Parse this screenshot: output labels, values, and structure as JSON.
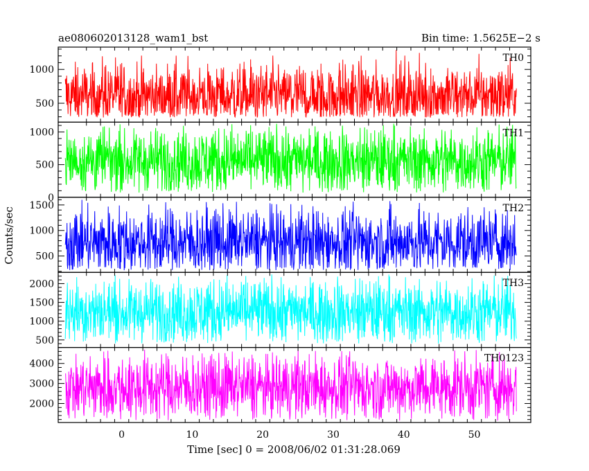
{
  "header": {
    "title": "ae080602013128_wam1_bst",
    "bin_time": "Bin time: 1.5625E−2 s"
  },
  "axes": {
    "xlabel": "Time [sec] 0 = 2008/06/02 01:31:28.069",
    "ylabel": "Counts/sec"
  },
  "chart_data": {
    "type": "line",
    "title": "ae080602013128_wam1_bst",
    "xlabel": "Time [sec] 0 = 2008/06/02 01:31:28.069",
    "ylabel": "Counts/sec",
    "xlim": [
      -9,
      58
    ],
    "x_range_data": [
      -8,
      56
    ],
    "x_ticks": [
      0,
      10,
      20,
      30,
      40,
      50
    ],
    "bin_time_s": 0.015625,
    "panels": [
      {
        "name": "TH0",
        "color": "#ff0000",
        "ylim": [
          220,
          1330
        ],
        "y_ticks": [
          500,
          1000
        ],
        "mean": 610,
        "min": 290,
        "max": 1300
      },
      {
        "name": "TH1",
        "color": "#00ff00",
        "ylim": [
          0,
          1150
        ],
        "y_ticks": [
          0,
          500,
          1000
        ],
        "mean": 560,
        "min": 70,
        "max": 1130
      },
      {
        "name": "TH2",
        "color": "#0000ff",
        "ylim": [
          180,
          1650
        ],
        "y_ticks": [
          500,
          1000,
          1500
        ],
        "mean": 770,
        "min": 220,
        "max": 1600
      },
      {
        "name": "TH3",
        "color": "#00ffff",
        "ylim": [
          300,
          2300
        ],
        "y_ticks": [
          500,
          1000,
          1500,
          2000
        ],
        "mean": 1250,
        "min": 400,
        "max": 2250
      },
      {
        "name": "TH0123",
        "color": "#ff00ff",
        "ylim": [
          1050,
          4800
        ],
        "y_ticks": [
          2000,
          3000,
          4000
        ],
        "mean": 2800,
        "min": 1150,
        "max": 4700
      }
    ]
  }
}
